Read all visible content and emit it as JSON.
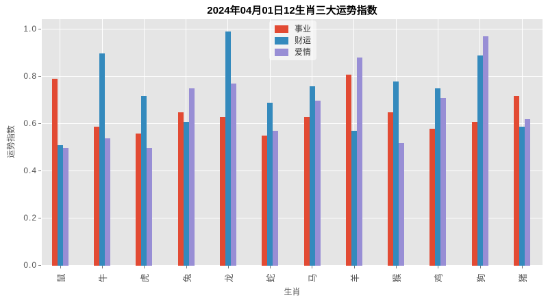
{
  "chart_data": {
    "type": "bar",
    "title": "2024年04月01日12生肖三大运势指数",
    "xlabel": "生肖",
    "ylabel": "运势指数",
    "categories": [
      "鼠",
      "牛",
      "虎",
      "兔",
      "龙",
      "蛇",
      "马",
      "羊",
      "猴",
      "鸡",
      "狗",
      "猪"
    ],
    "series": [
      {
        "name": "事业",
        "color": "#E24A33",
        "values": [
          0.79,
          0.59,
          0.56,
          0.65,
          0.63,
          0.55,
          0.63,
          0.81,
          0.65,
          0.58,
          0.61,
          0.72
        ]
      },
      {
        "name": "财运",
        "color": "#348ABD",
        "values": [
          0.51,
          0.9,
          0.72,
          0.61,
          0.99,
          0.69,
          0.76,
          0.57,
          0.78,
          0.75,
          0.89,
          0.59
        ]
      },
      {
        "name": "爱情",
        "color": "#988ED5",
        "values": [
          0.5,
          0.54,
          0.5,
          0.75,
          0.77,
          0.57,
          0.7,
          0.88,
          0.52,
          0.71,
          0.97,
          0.62
        ]
      }
    ],
    "ylim": [
      0.0,
      1.04
    ],
    "yticks": [
      0.0,
      0.2,
      0.4,
      0.6,
      0.8,
      1.0
    ],
    "ytick_labels": [
      "0.0",
      "0.2",
      "0.4",
      "0.6",
      "0.8",
      "1.0"
    ],
    "grid": true,
    "legend_position": "upper center",
    "plot_background": "#E5E5E5",
    "grid_color": "#FFFFFF",
    "figure_background": "#FFFFFF"
  }
}
